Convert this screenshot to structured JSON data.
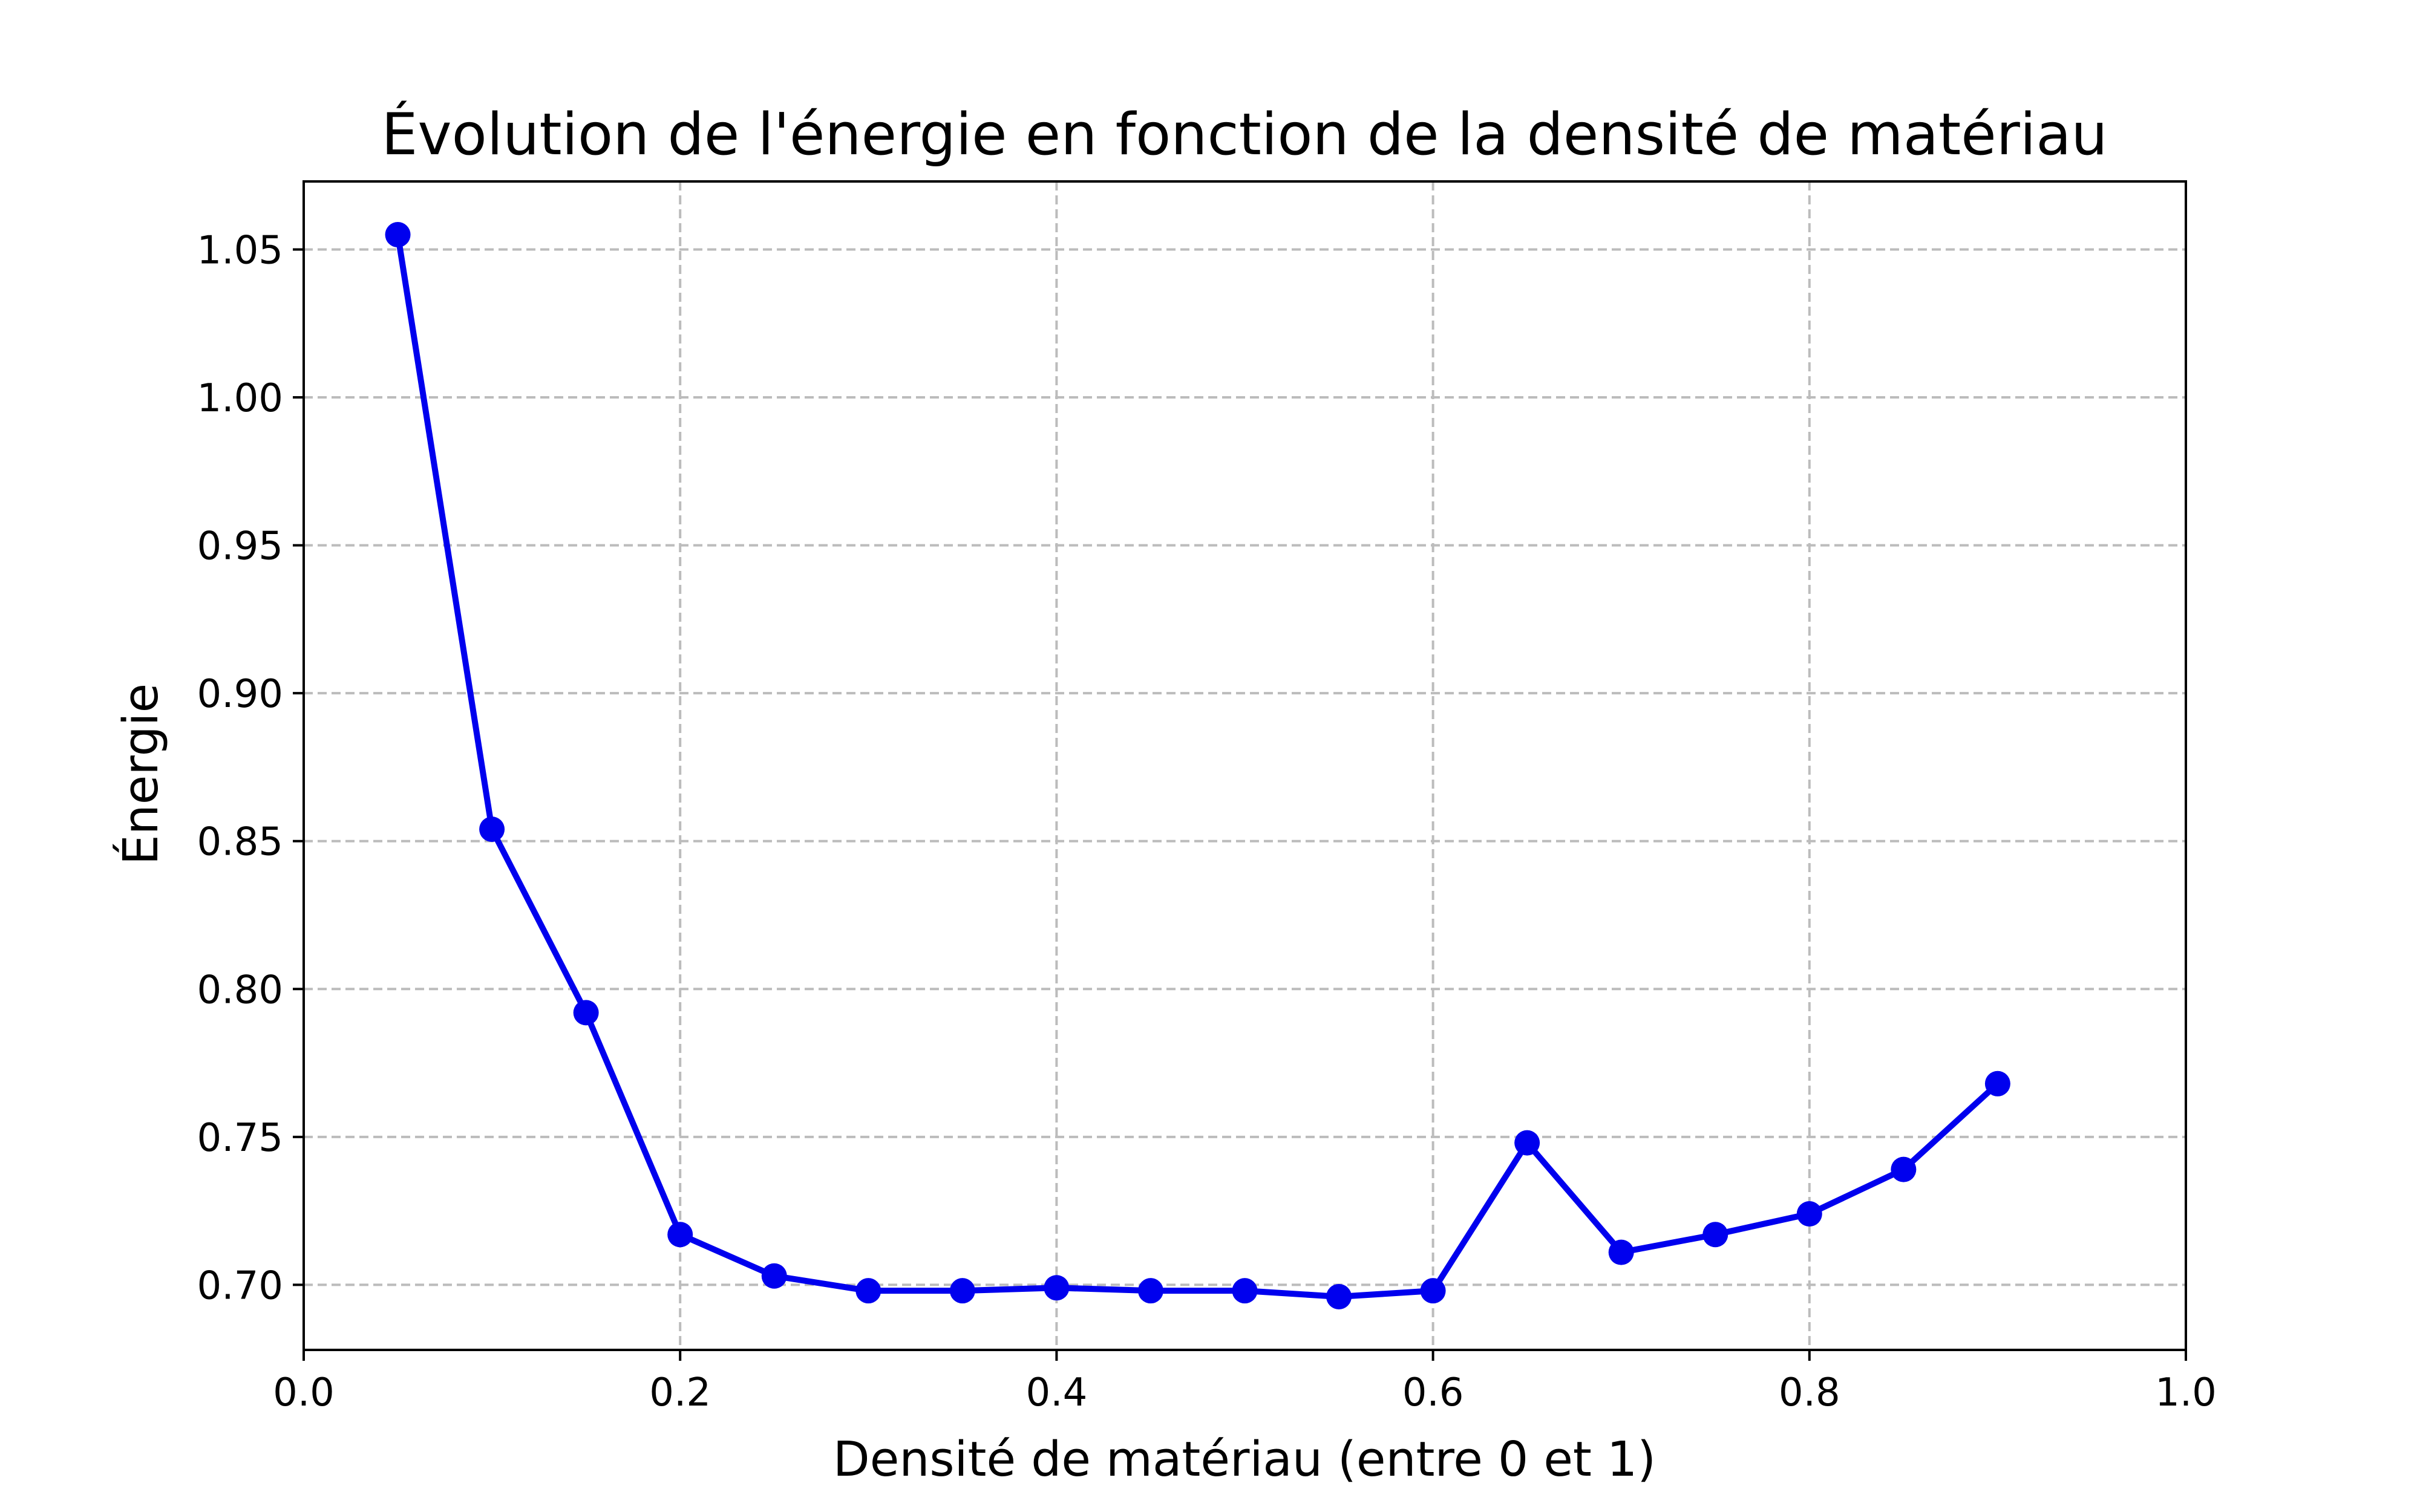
{
  "chart_data": {
    "type": "line",
    "title": "Évolution de l'énergie en fonction de la densité de matériau",
    "xlabel": "Densité de matériau (entre 0 et 1)",
    "ylabel": "Énergie",
    "xlim": [
      0.0,
      1.0
    ],
    "ylim": [
      0.678,
      1.073
    ],
    "xticks": [
      "0.0",
      "0.2",
      "0.4",
      "0.6",
      "0.8",
      "1.0"
    ],
    "yticks": [
      "0.70",
      "0.75",
      "0.80",
      "0.85",
      "0.90",
      "0.95",
      "1.00",
      "1.05"
    ],
    "grid": true,
    "grid_style": "dashed",
    "line_color": "#0000ee",
    "marker": "circle",
    "series": [
      {
        "x": [
          0.05,
          0.1,
          0.15,
          0.2,
          0.25,
          0.3,
          0.35,
          0.4,
          0.45,
          0.5,
          0.55,
          0.6,
          0.65,
          0.7,
          0.75,
          0.8,
          0.85,
          0.9
        ],
        "values": [
          1.055,
          0.854,
          0.792,
          0.717,
          0.703,
          0.698,
          0.698,
          0.699,
          0.698,
          0.698,
          0.696,
          0.698,
          0.748,
          0.711,
          0.717,
          0.724,
          0.739,
          0.768
        ]
      }
    ]
  }
}
